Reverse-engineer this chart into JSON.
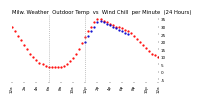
{
  "title": "Milw. Weather  Outdoor Temp  vs  Wind Chill  per Minute  (24 Hours)",
  "background_color": "#ffffff",
  "plot_bg_color": "#ffffff",
  "temp_color": "#ff0000",
  "windchill_color": "#0000cc",
  "vline_color": "#888888",
  "ylim": [
    -7,
    38
  ],
  "xlim": [
    0,
    1440
  ],
  "vlines": [
    360,
    720
  ],
  "temp_data_x": [
    0,
    30,
    60,
    90,
    120,
    150,
    180,
    210,
    240,
    270,
    300,
    330,
    360,
    390,
    420,
    450,
    480,
    510,
    540,
    570,
    600,
    630,
    660,
    690,
    720,
    750,
    780,
    810,
    840,
    870,
    900,
    930,
    960,
    990,
    1020,
    1050,
    1080,
    1110,
    1140,
    1170,
    1200,
    1230,
    1260,
    1290,
    1320,
    1350,
    1380,
    1410,
    1440
  ],
  "temp_data_y": [
    30,
    27,
    24,
    21,
    18,
    15,
    12,
    10,
    8,
    6,
    5,
    4,
    3,
    3,
    3,
    3,
    3,
    4,
    5,
    7,
    9,
    12,
    15,
    19,
    23,
    27,
    30,
    33,
    35,
    35,
    34,
    33,
    32,
    31,
    30,
    30,
    29,
    28,
    27,
    26,
    24,
    22,
    20,
    18,
    16,
    14,
    12,
    11,
    10
  ],
  "windchill_data_x": [
    720,
    750,
    780,
    810,
    840,
    870,
    900,
    930,
    960,
    990,
    1020,
    1050,
    1080,
    1110,
    1140
  ],
  "windchill_data_y": [
    20,
    24,
    27,
    30,
    33,
    34,
    33,
    32,
    31,
    30,
    29,
    28,
    27,
    26,
    25
  ],
  "title_fontsize": 3.8,
  "tick_fontsize": 3.0,
  "marker_size": 1.2,
  "ytick_values": [
    35,
    30,
    25,
    20,
    15,
    10,
    5,
    0,
    -5
  ],
  "xtick_labels": [
    "12a",
    "2a",
    "4a",
    "6a",
    "8a",
    "10a",
    "12p",
    "2p",
    "4p",
    "6p",
    "8p",
    "10p",
    "12a"
  ],
  "xtick_positions": [
    0,
    120,
    240,
    360,
    480,
    600,
    720,
    840,
    960,
    1080,
    1200,
    1320,
    1440
  ]
}
